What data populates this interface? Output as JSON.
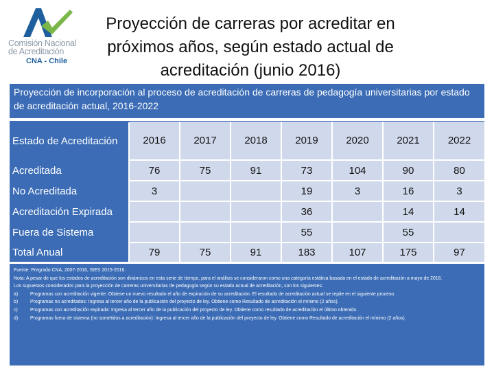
{
  "logo": {
    "line1": "Comisión Nacional",
    "line2": "de Acreditación",
    "line3": "CNA - Chile",
    "colors": {
      "blue": "#1f5f9e",
      "green": "#7ab648",
      "gray": "#8c9aa8"
    }
  },
  "title": "Proyección de carreras por acreditar en próximos años, según estado actual de acreditación (junio 2016)",
  "panel_header": "Proyección de incorporación al proceso de acreditación de carreras de pedagogía universitarias por estado de acreditación actual, 2016-2022",
  "table": {
    "header_label": "Estado de Acreditación",
    "years": [
      "2016",
      "2017",
      "2018",
      "2019",
      "2020",
      "2021",
      "2022"
    ],
    "rows": [
      {
        "label": "Acreditada",
        "values": [
          "76",
          "75",
          "91",
          "73",
          "104",
          "90",
          "80"
        ]
      },
      {
        "label": "No Acreditada",
        "values": [
          "3",
          "",
          "",
          "19",
          "3",
          "16",
          "3"
        ]
      },
      {
        "label": "Acreditación Expirada",
        "values": [
          "",
          "",
          "",
          "36",
          "",
          "14",
          "14"
        ]
      },
      {
        "label": "Fuera de Sistema",
        "values": [
          "",
          "",
          "",
          "55",
          "",
          "55",
          ""
        ]
      },
      {
        "label": "Total Anual",
        "values": [
          "79",
          "75",
          "91",
          "183",
          "107",
          "175",
          "97"
        ]
      }
    ]
  },
  "notes": {
    "source": "Fuente: Pregrado CNA, 2007-2016, SIES 2015-2016.",
    "nota": "Nota: A pesar de que los estados de acreditación son dinámicos en esta serie de tiempo, para el análisis se consideraron como una categoría estática basada en el estado de acreditación a mayo de 2016.",
    "intro": "Los supuestos considerados para la proyección de carreras universitarias de pedagogía según su estado actual de acreditación, son los siguientes:",
    "items": [
      {
        "marker": "a)",
        "text": "Programas con acreditación vigente: Obtiene un nuevo resultado el año de expiración de su acreditación. El resultado de acreditación actual se repite en el siguiente proceso."
      },
      {
        "marker": "b)",
        "text": "Programas no acreditados: Ingresa al tercer año de la publicación del proyecto de ley. Obtiene como Resultado de acreditación el mínimo (2 años)."
      },
      {
        "marker": "c)",
        "text": "Programas con acreditación expirada: Ingresa al tercer año de la publicación del proyecto de ley. Obtiene como resultado de acreditación el último obtenido."
      },
      {
        "marker": "d)",
        "text": "Programas fuera de sistema (no sometidos a acreditación): Ingresa al tercer año de la publicación del proyecto de ley. Obtiene como Resultado de acreditación el mínimo (2 años)."
      }
    ]
  }
}
